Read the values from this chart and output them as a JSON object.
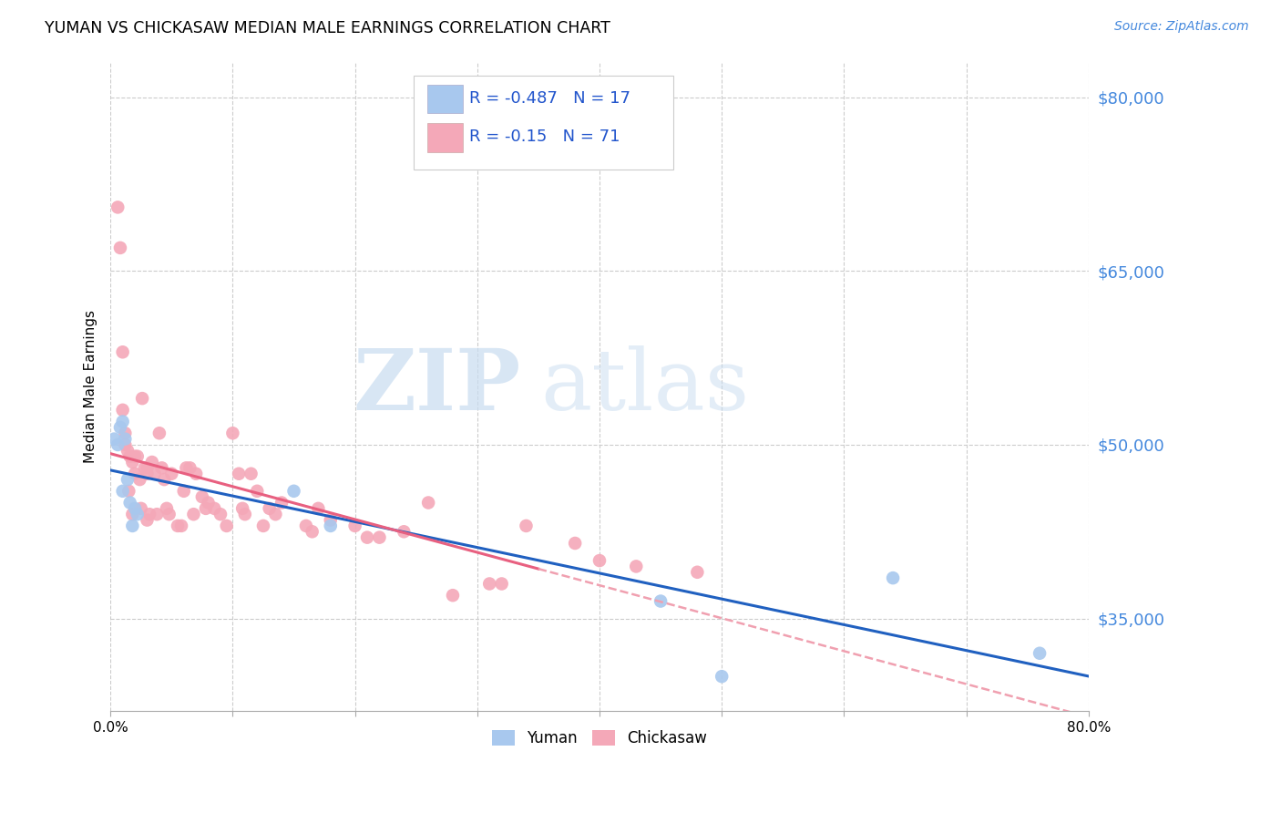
{
  "title": "YUMAN VS CHICKASAW MEDIAN MALE EARNINGS CORRELATION CHART",
  "source": "Source: ZipAtlas.com",
  "ylabel": "Median Male Earnings",
  "xlim": [
    0.0,
    0.8
  ],
  "ylim": [
    27000,
    83000
  ],
  "yticks": [
    35000,
    50000,
    65000,
    80000
  ],
  "ytick_labels": [
    "$35,000",
    "$50,000",
    "$65,000",
    "$80,000"
  ],
  "xticks": [
    0.0,
    0.1,
    0.2,
    0.3,
    0.4,
    0.5,
    0.6,
    0.7,
    0.8
  ],
  "xtick_labels": [
    "0.0%",
    "",
    "",
    "",
    "",
    "",
    "",
    "",
    "80.0%"
  ],
  "watermark_zip": "ZIP",
  "watermark_atlas": "atlas",
  "legend_blue_label": "Yuman",
  "legend_pink_label": "Chickasaw",
  "R_blue": -0.487,
  "N_blue": 17,
  "R_pink": -0.15,
  "N_pink": 71,
  "blue_color": "#A8C8EE",
  "pink_color": "#F4A8B8",
  "blue_line_color": "#2060C0",
  "pink_line_color": "#E86080",
  "pink_dash_color": "#F0A0B0",
  "background_color": "#FFFFFF",
  "grid_color": "#CCCCCC",
  "blue_x": [
    0.003,
    0.006,
    0.008,
    0.01,
    0.01,
    0.012,
    0.014,
    0.016,
    0.018,
    0.02,
    0.022,
    0.15,
    0.18,
    0.45,
    0.5,
    0.64,
    0.76
  ],
  "blue_y": [
    50500,
    50000,
    51500,
    52000,
    46000,
    50500,
    47000,
    45000,
    43000,
    44500,
    44000,
    46000,
    43000,
    36500,
    30000,
    38500,
    32000
  ],
  "pink_x": [
    0.006,
    0.008,
    0.01,
    0.01,
    0.012,
    0.012,
    0.014,
    0.015,
    0.016,
    0.018,
    0.018,
    0.02,
    0.02,
    0.022,
    0.024,
    0.025,
    0.026,
    0.028,
    0.03,
    0.03,
    0.03,
    0.032,
    0.034,
    0.036,
    0.038,
    0.04,
    0.042,
    0.044,
    0.046,
    0.048,
    0.05,
    0.055,
    0.058,
    0.06,
    0.062,
    0.065,
    0.068,
    0.07,
    0.075,
    0.078,
    0.08,
    0.085,
    0.09,
    0.095,
    0.1,
    0.105,
    0.108,
    0.11,
    0.115,
    0.12,
    0.125,
    0.13,
    0.135,
    0.14,
    0.16,
    0.165,
    0.17,
    0.18,
    0.2,
    0.21,
    0.22,
    0.24,
    0.26,
    0.28,
    0.31,
    0.32,
    0.34,
    0.38,
    0.4,
    0.43,
    0.48
  ],
  "pink_y": [
    70500,
    67000,
    58000,
    53000,
    51000,
    50000,
    49500,
    46000,
    49000,
    48500,
    44000,
    49000,
    47500,
    49000,
    47000,
    44500,
    54000,
    48000,
    48000,
    47500,
    43500,
    44000,
    48500,
    47500,
    44000,
    51000,
    48000,
    47000,
    44500,
    44000,
    47500,
    43000,
    43000,
    46000,
    48000,
    48000,
    44000,
    47500,
    45500,
    44500,
    45000,
    44500,
    44000,
    43000,
    51000,
    47500,
    44500,
    44000,
    47500,
    46000,
    43000,
    44500,
    44000,
    45000,
    43000,
    42500,
    44500,
    43500,
    43000,
    42000,
    42000,
    42500,
    45000,
    37000,
    38000,
    38000,
    43000,
    41500,
    40000,
    39500,
    39000
  ]
}
